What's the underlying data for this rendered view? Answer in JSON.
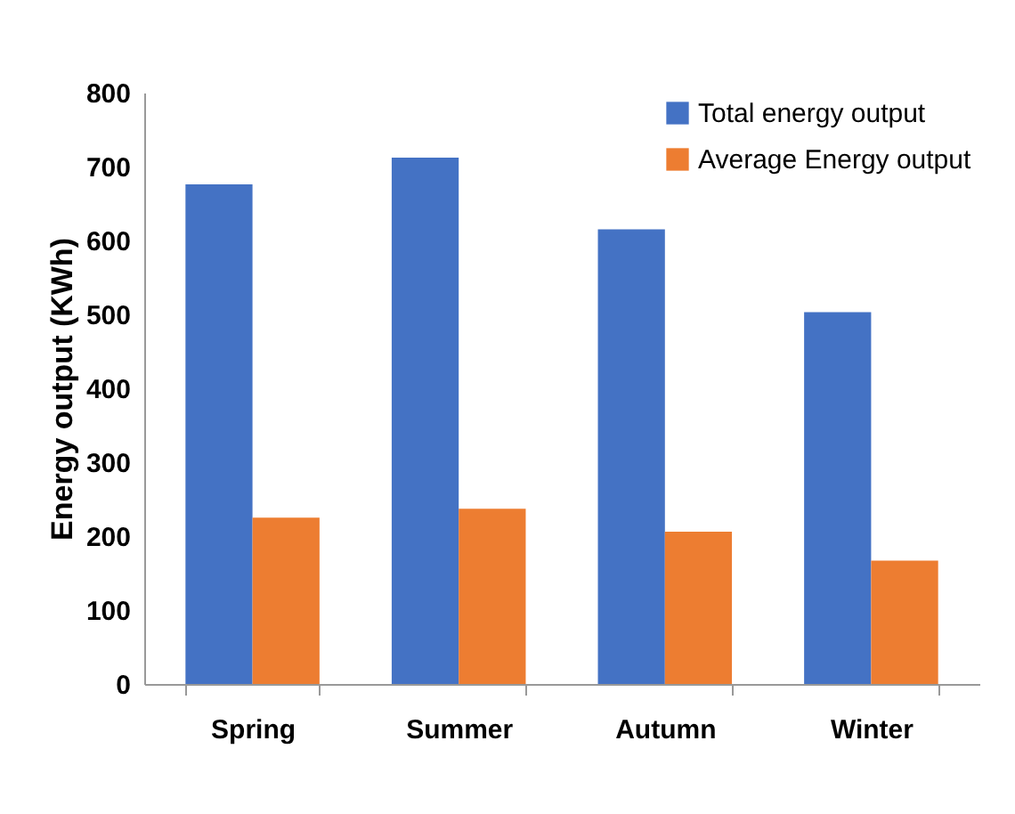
{
  "chart_data": {
    "type": "bar",
    "ylabel": "Energy output (KWh)",
    "categories": [
      "Spring",
      "Summer",
      "Autumn",
      "Winter"
    ],
    "series": [
      {
        "name": "Total energy output",
        "color": "#4472c4",
        "values": [
          676,
          712,
          615,
          503
        ]
      },
      {
        "name": "Average Energy output",
        "color": "#ed7d31",
        "values": [
          225,
          237,
          206,
          167
        ]
      }
    ],
    "ylim": [
      0,
      800
    ],
    "yticks": [
      0,
      100,
      200,
      300,
      400,
      500,
      600,
      700,
      800
    ],
    "grid": false,
    "legend": "top right"
  }
}
